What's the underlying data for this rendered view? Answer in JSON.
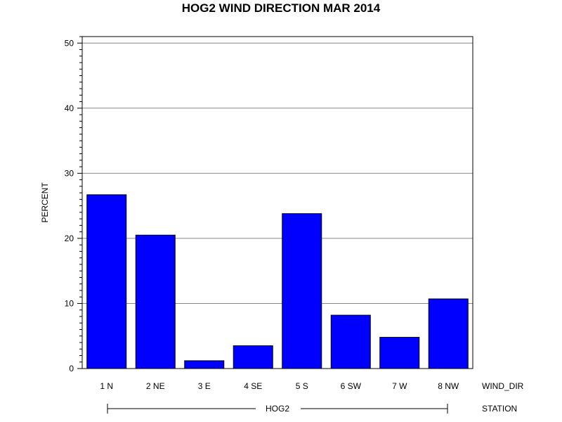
{
  "chart_data": {
    "type": "bar",
    "title": "HOG2 WIND DIRECTION MAR 2014",
    "ylabel": "PERCENT",
    "xlabel": "WIND_DIR",
    "group_axis_label": "STATION",
    "group_label": "HOG2",
    "categories": [
      "1 N",
      "2 NE",
      "3 E",
      "4 SE",
      "5 S",
      "6 SW",
      "7 W",
      "8 NW"
    ],
    "values": [
      26.7,
      20.5,
      1.2,
      3.5,
      23.8,
      8.2,
      4.8,
      10.7
    ],
    "ylim": [
      0,
      50
    ],
    "yticks": [
      "0",
      "10",
      "20",
      "30",
      "40",
      "50"
    ],
    "grid": true,
    "bar_color": "#0000ff"
  }
}
